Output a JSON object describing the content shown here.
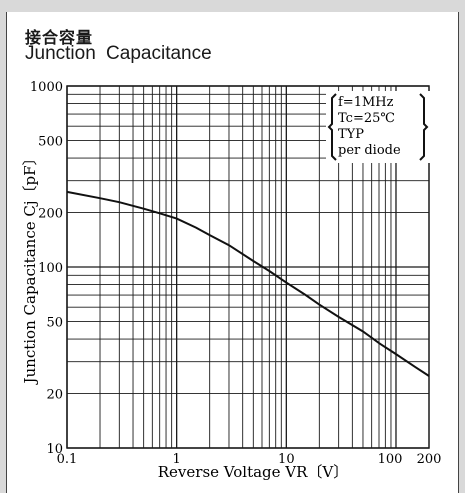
{
  "chart_data": {
    "type": "line",
    "title_jp": "接合容量",
    "title": "Junction Capacitance",
    "xlabel": "Reverse Voltage VR〔V〕",
    "ylabel": "Junction Capacitance Cj〔pF〕",
    "x_scale": "log",
    "y_scale": "log",
    "xlim": [
      0.1,
      200
    ],
    "ylim": [
      10,
      1000
    ],
    "x_ticks": [
      "0.1",
      "1",
      "10",
      "100",
      "200"
    ],
    "y_ticks": [
      "10",
      "20",
      "50",
      "100",
      "200",
      "500",
      "1000"
    ],
    "grid": true,
    "conditions": [
      "f=1MHz",
      "Tc=25℃",
      "TYP",
      "per diode"
    ],
    "series": [
      {
        "x": [
          0.1,
          0.2,
          0.3,
          0.5,
          0.7,
          1,
          1.5,
          2,
          3,
          5,
          7,
          10,
          15,
          20,
          30,
          50,
          70,
          100,
          150,
          200
        ],
        "y": [
          260,
          240,
          228,
          210,
          198,
          185,
          165,
          150,
          132,
          108,
          95,
          82,
          70,
          62,
          53,
          44,
          38,
          33,
          28,
          25
        ]
      }
    ]
  }
}
